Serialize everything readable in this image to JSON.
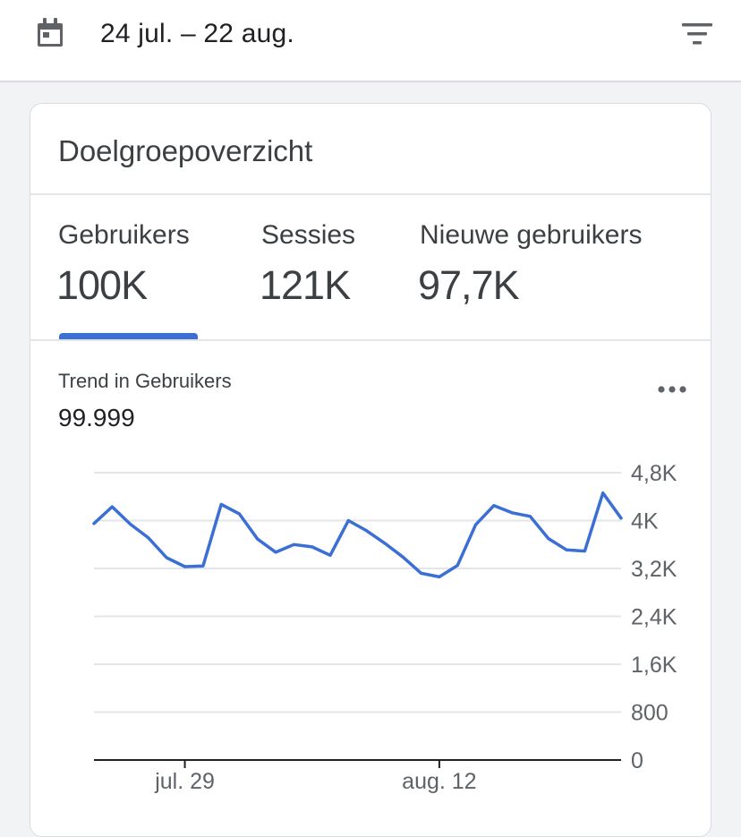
{
  "header": {
    "date_range": "24 jul. – 22 aug.",
    "calendar_icon": "calendar-icon",
    "filter_icon": "filter-icon"
  },
  "card": {
    "title": "Doelgroepoverzicht",
    "metrics": [
      {
        "label": "Gebruikers",
        "value": "100K",
        "selected": true
      },
      {
        "label": "Sessies",
        "value": "121K",
        "selected": false
      },
      {
        "label": "Nieuwe gebruikers",
        "value": "97,7K",
        "selected": false
      }
    ],
    "trend_label": "Trend in Gebruikers",
    "trend_value": "99.999",
    "more_icon": "more-horiz-icon"
  },
  "colors": {
    "accent": "#3b6fd4",
    "line": "#3b6fd4",
    "grid": "#e3e5e8",
    "text": "#3c4043"
  },
  "chart_data": {
    "type": "line",
    "y_ticks": [
      "4,8K",
      "4K",
      "3,2K",
      "2,4K",
      "1,6K",
      "800",
      "0"
    ],
    "y_tick_values": [
      4800,
      4000,
      3200,
      2400,
      1600,
      800,
      0
    ],
    "ylim": [
      0,
      4800
    ],
    "x_tick_labels": [
      "jul. 29",
      "aug. 12"
    ],
    "x_tick_index": [
      5,
      19
    ],
    "grid": true,
    "series": [
      {
        "values": [
          3950,
          4230,
          3940,
          3710,
          3380,
          3230,
          3240,
          4270,
          4110,
          3690,
          3470,
          3600,
          3560,
          3420,
          4000,
          3830,
          3620,
          3390,
          3120,
          3060,
          3250,
          3930,
          4250,
          4130,
          4070,
          3700,
          3510,
          3490,
          4460,
          4040
        ]
      }
    ]
  }
}
